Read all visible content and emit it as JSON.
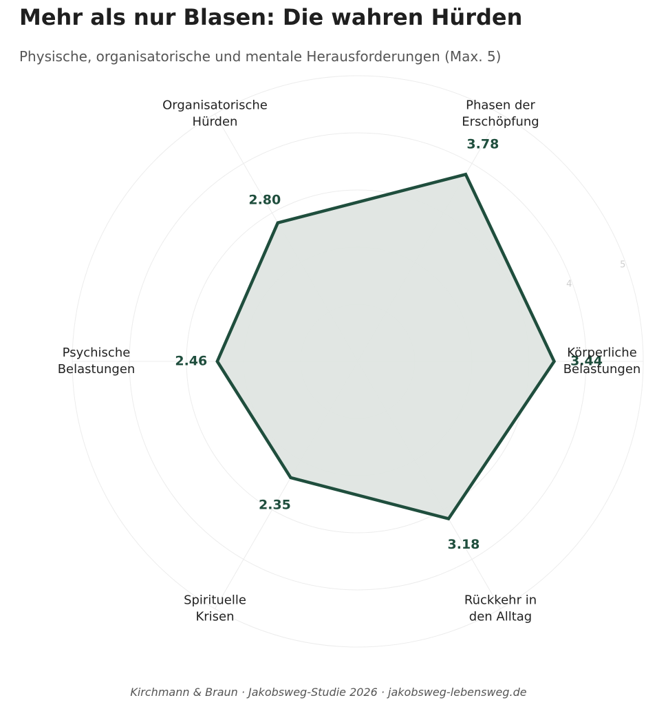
{
  "title": "Mehr als nur Blasen: Die wahren Hürden",
  "subtitle": "Physische, organisatorische und mentale Herausforderungen (Max. 5)",
  "footer": "Kirchmann & Braun · Jakobsweg-Studie 2026 · jakobsweg-lebensweg.de",
  "colors": {
    "line": "#1f4e3d",
    "fill": "#dfe5e2",
    "grid": "#ececec",
    "tick": "#cfcfcf"
  },
  "chart_data": {
    "type": "radar",
    "max": 5,
    "ticks": [
      4,
      5
    ],
    "categories": [
      {
        "label": [
          "Körperliche",
          "Belastungen"
        ],
        "value": 3.44,
        "value_label": "3.44"
      },
      {
        "label": [
          "Phasen der",
          "Erschöpfung"
        ],
        "value": 3.78,
        "value_label": "3.78"
      },
      {
        "label": [
          "Organisatorische",
          "Hürden"
        ],
        "value": 2.8,
        "value_label": "2.80"
      },
      {
        "label": [
          "Psychische",
          "Belastungen"
        ],
        "value": 2.46,
        "value_label": "2.46"
      },
      {
        "label": [
          "Spirituelle",
          "Krisen"
        ],
        "value": 2.35,
        "value_label": "2.35"
      },
      {
        "label": [
          "Rückkehr in",
          "den Alltag"
        ],
        "value": 3.18,
        "value_label": "3.18"
      }
    ]
  }
}
